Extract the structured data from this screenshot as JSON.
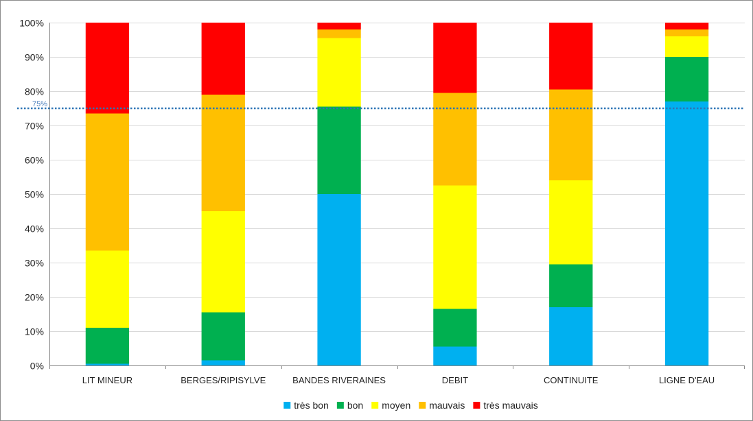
{
  "chart_data": {
    "type": "bar",
    "stacked": true,
    "normalized": true,
    "categories": [
      "LIT MINEUR",
      "BERGES/RIPISYLVE",
      "BANDES RIVERAINES",
      "DEBIT",
      "CONTINUITE",
      "LIGNE D'EAU"
    ],
    "series": [
      {
        "name": "très bon",
        "color": "#00b0f0",
        "values": [
          0.5,
          1.5,
          50.0,
          5.5,
          17.0,
          77.0
        ]
      },
      {
        "name": "bon",
        "color": "#00b050",
        "values": [
          10.5,
          14.0,
          25.5,
          11.0,
          12.5,
          13.0
        ]
      },
      {
        "name": "moyen",
        "color": "#ffff00",
        "values": [
          22.5,
          29.5,
          20.0,
          36.0,
          24.5,
          6.0
        ]
      },
      {
        "name": "mauvais",
        "color": "#ffc000",
        "values": [
          40.0,
          34.0,
          2.5,
          27.0,
          26.5,
          2.0
        ]
      },
      {
        "name": "très mauvais",
        "color": "#ff0000",
        "values": [
          26.5,
          21.0,
          2.0,
          20.5,
          19.5,
          2.0
        ]
      }
    ],
    "ylim": [
      0,
      100
    ],
    "yticks": [
      "0%",
      "10%",
      "20%",
      "30%",
      "40%",
      "50%",
      "60%",
      "70%",
      "80%",
      "90%",
      "100%"
    ],
    "grid": true,
    "legend_position": "bottom",
    "reference_line": {
      "value": 75,
      "label": "75%",
      "color": "#2e75b6"
    }
  }
}
